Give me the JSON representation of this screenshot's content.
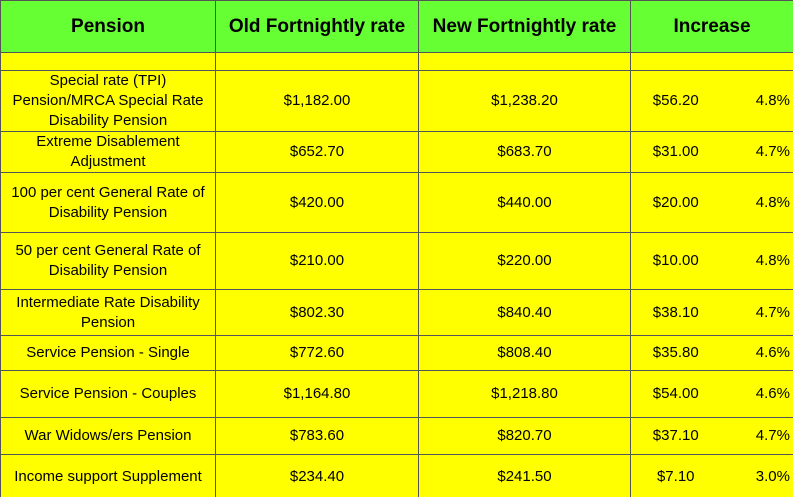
{
  "headers": [
    "Pension",
    "Old Fortnightly rate",
    "New Fortnightly rate",
    "Increase"
  ],
  "rows": [
    {
      "pension": "Special rate (TPI) Pension/MRCA Special Rate Disability Pension",
      "old": "$1,182.00",
      "new": "$1,238.20",
      "increase": "$56.20",
      "percent": "4.8%"
    },
    {
      "pension": "Extreme Disablement Adjustment",
      "old": "$652.70",
      "new": "$683.70",
      "increase": "$31.00",
      "percent": "4.7%"
    },
    {
      "pension": "100 per cent General Rate of Disability Pension",
      "old": "$420.00",
      "new": "$440.00",
      "increase": "$20.00",
      "percent": "4.8%"
    },
    {
      "pension": "50 per cent General Rate of Disability Pension",
      "old": "$210.00",
      "new": "$220.00",
      "increase": "$10.00",
      "percent": "4.8%"
    },
    {
      "pension": "Intermediate Rate Disability Pension",
      "old": "$802.30",
      "new": "$840.40",
      "increase": "$38.10",
      "percent": "4.7%"
    },
    {
      "pension": "Service Pension - Single",
      "old": "$772.60",
      "new": "$808.40",
      "increase": "$35.80",
      "percent": "4.6%"
    },
    {
      "pension": "Service Pension - Couples",
      "old": "$1,164.80",
      "new": "$1,218.80",
      "increase": "$54.00",
      "percent": "4.6%"
    },
    {
      "pension": "War Widows/ers Pension",
      "old": "$783.60",
      "new": "$820.70",
      "increase": "$37.10",
      "percent": "4.7%"
    },
    {
      "pension": "Income support Supplement",
      "old": "$234.40",
      "new": "$241.50",
      "increase": "$7.10",
      "percent": "3.0%"
    }
  ]
}
